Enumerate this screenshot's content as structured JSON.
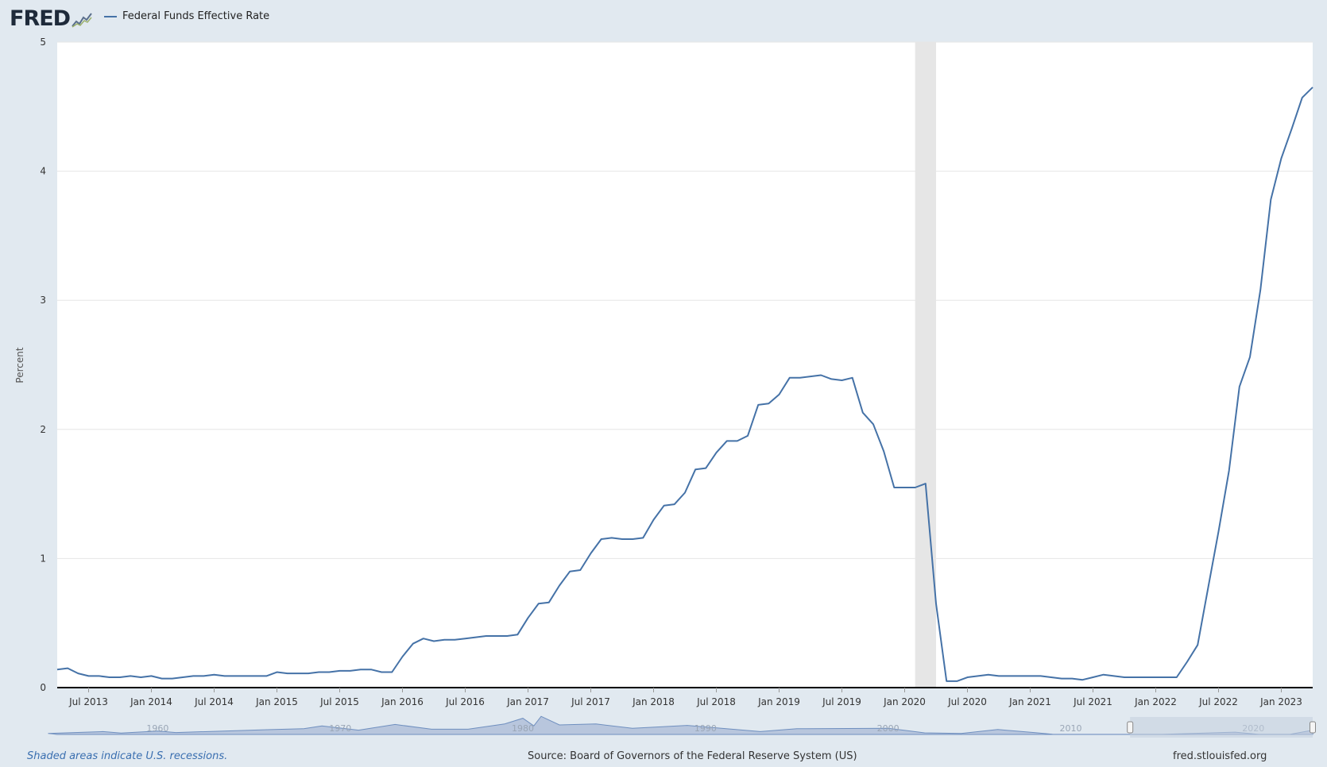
{
  "logo": {
    "text": "FRED"
  },
  "legend": {
    "label": "Federal Funds Effective Rate",
    "color": "#4572a7"
  },
  "colors": {
    "panel": "#e1e9f0",
    "plot": "#ffffff",
    "series": "#4572a7",
    "recession": "#e6e6e6",
    "grid": "#e6e6e6",
    "axis": "#000000",
    "navigator_fill": "#b8c6dd",
    "navigator_line": "#6f8fbf",
    "navigator_mask": "#c4cfdf"
  },
  "footer": {
    "note": "Shaded areas indicate U.S. recessions.",
    "source": "Source: Board of Governors of the Federal Reserve System (US)",
    "site": "fred.stlouisfed.org"
  },
  "navigator": {
    "decade_labels": [
      "1960",
      "1970",
      "1980",
      "1990",
      "2000",
      "2010",
      "2020"
    ],
    "range": [
      "2013-04",
      "2023-04"
    ],
    "full_range": [
      "1954-07",
      "2023-04"
    ]
  },
  "chart_data": {
    "type": "line",
    "title": "",
    "xlabel": "",
    "ylabel": "Percent",
    "ylim": [
      0,
      5
    ],
    "yticks": [
      "0",
      "1",
      "2",
      "3",
      "4",
      "5"
    ],
    "xlim": [
      "2013-04",
      "2023-04"
    ],
    "xticks": [
      "Jul 2013",
      "Jan 2014",
      "Jul 2014",
      "Jan 2015",
      "Jul 2015",
      "Jan 2016",
      "Jul 2016",
      "Jan 2017",
      "Jul 2017",
      "Jan 2018",
      "Jul 2018",
      "Jan 2019",
      "Jul 2019",
      "Jan 2020",
      "Jul 2020",
      "Jan 2021",
      "Jul 2021",
      "Jan 2022",
      "Jul 2022",
      "Jan 2023"
    ],
    "grid": true,
    "legend": "top-left",
    "recessions": [
      {
        "start": "2020-02",
        "end": "2020-04"
      }
    ],
    "series": [
      {
        "name": "Federal Funds Effective Rate",
        "x": [
          "2013-04",
          "2013-05",
          "2013-06",
          "2013-07",
          "2013-08",
          "2013-09",
          "2013-10",
          "2013-11",
          "2013-12",
          "2014-01",
          "2014-02",
          "2014-03",
          "2014-04",
          "2014-05",
          "2014-06",
          "2014-07",
          "2014-08",
          "2014-09",
          "2014-10",
          "2014-11",
          "2014-12",
          "2015-01",
          "2015-02",
          "2015-03",
          "2015-04",
          "2015-05",
          "2015-06",
          "2015-07",
          "2015-08",
          "2015-09",
          "2015-10",
          "2015-11",
          "2015-12",
          "2016-01",
          "2016-02",
          "2016-03",
          "2016-04",
          "2016-05",
          "2016-06",
          "2016-07",
          "2016-08",
          "2016-09",
          "2016-10",
          "2016-11",
          "2016-12",
          "2017-01",
          "2017-02",
          "2017-03",
          "2017-04",
          "2017-05",
          "2017-06",
          "2017-07",
          "2017-08",
          "2017-09",
          "2017-10",
          "2017-11",
          "2017-12",
          "2018-01",
          "2018-02",
          "2018-03",
          "2018-04",
          "2018-05",
          "2018-06",
          "2018-07",
          "2018-08",
          "2018-09",
          "2018-10",
          "2018-11",
          "2018-12",
          "2019-01",
          "2019-02",
          "2019-03",
          "2019-04",
          "2019-05",
          "2019-06",
          "2019-07",
          "2019-08",
          "2019-09",
          "2019-10",
          "2019-11",
          "2019-12",
          "2020-01",
          "2020-02",
          "2020-03",
          "2020-04",
          "2020-05",
          "2020-06",
          "2020-07",
          "2020-08",
          "2020-09",
          "2020-10",
          "2020-11",
          "2020-12",
          "2021-01",
          "2021-02",
          "2021-03",
          "2021-04",
          "2021-05",
          "2021-06",
          "2021-07",
          "2021-08",
          "2021-09",
          "2021-10",
          "2021-11",
          "2021-12",
          "2022-01",
          "2022-02",
          "2022-03",
          "2022-04",
          "2022-05",
          "2022-06",
          "2022-07",
          "2022-08",
          "2022-09",
          "2022-10",
          "2022-11",
          "2022-12",
          "2023-01",
          "2023-02",
          "2023-03",
          "2023-04"
        ],
        "values": [
          0.14,
          0.15,
          0.11,
          0.09,
          0.09,
          0.08,
          0.08,
          0.09,
          0.08,
          0.09,
          0.07,
          0.07,
          0.08,
          0.09,
          0.09,
          0.1,
          0.09,
          0.09,
          0.09,
          0.09,
          0.09,
          0.12,
          0.11,
          0.11,
          0.11,
          0.12,
          0.12,
          0.13,
          0.13,
          0.14,
          0.14,
          0.12,
          0.12,
          0.24,
          0.34,
          0.38,
          0.36,
          0.37,
          0.37,
          0.38,
          0.39,
          0.4,
          0.4,
          0.4,
          0.41,
          0.54,
          0.65,
          0.66,
          0.79,
          0.9,
          0.91,
          1.04,
          1.15,
          1.16,
          1.15,
          1.15,
          1.16,
          1.3,
          1.41,
          1.42,
          1.51,
          1.69,
          1.7,
          1.82,
          1.91,
          1.91,
          1.95,
          2.19,
          2.2,
          2.27,
          2.4,
          2.4,
          2.41,
          2.42,
          2.39,
          2.38,
          2.4,
          2.13,
          2.04,
          1.83,
          1.55,
          1.55,
          1.55,
          1.58,
          0.65,
          0.05,
          0.05,
          0.08,
          0.09,
          0.1,
          0.09,
          0.09,
          0.09,
          0.09,
          0.09,
          0.08,
          0.07,
          0.07,
          0.06,
          0.08,
          0.1,
          0.09,
          0.08,
          0.08,
          0.08,
          0.08,
          0.08,
          0.08,
          0.2,
          0.33,
          0.77,
          1.21,
          1.68,
          2.33,
          2.56,
          3.08,
          3.78,
          4.1,
          4.33,
          4.57,
          4.65
        ]
      }
    ]
  }
}
